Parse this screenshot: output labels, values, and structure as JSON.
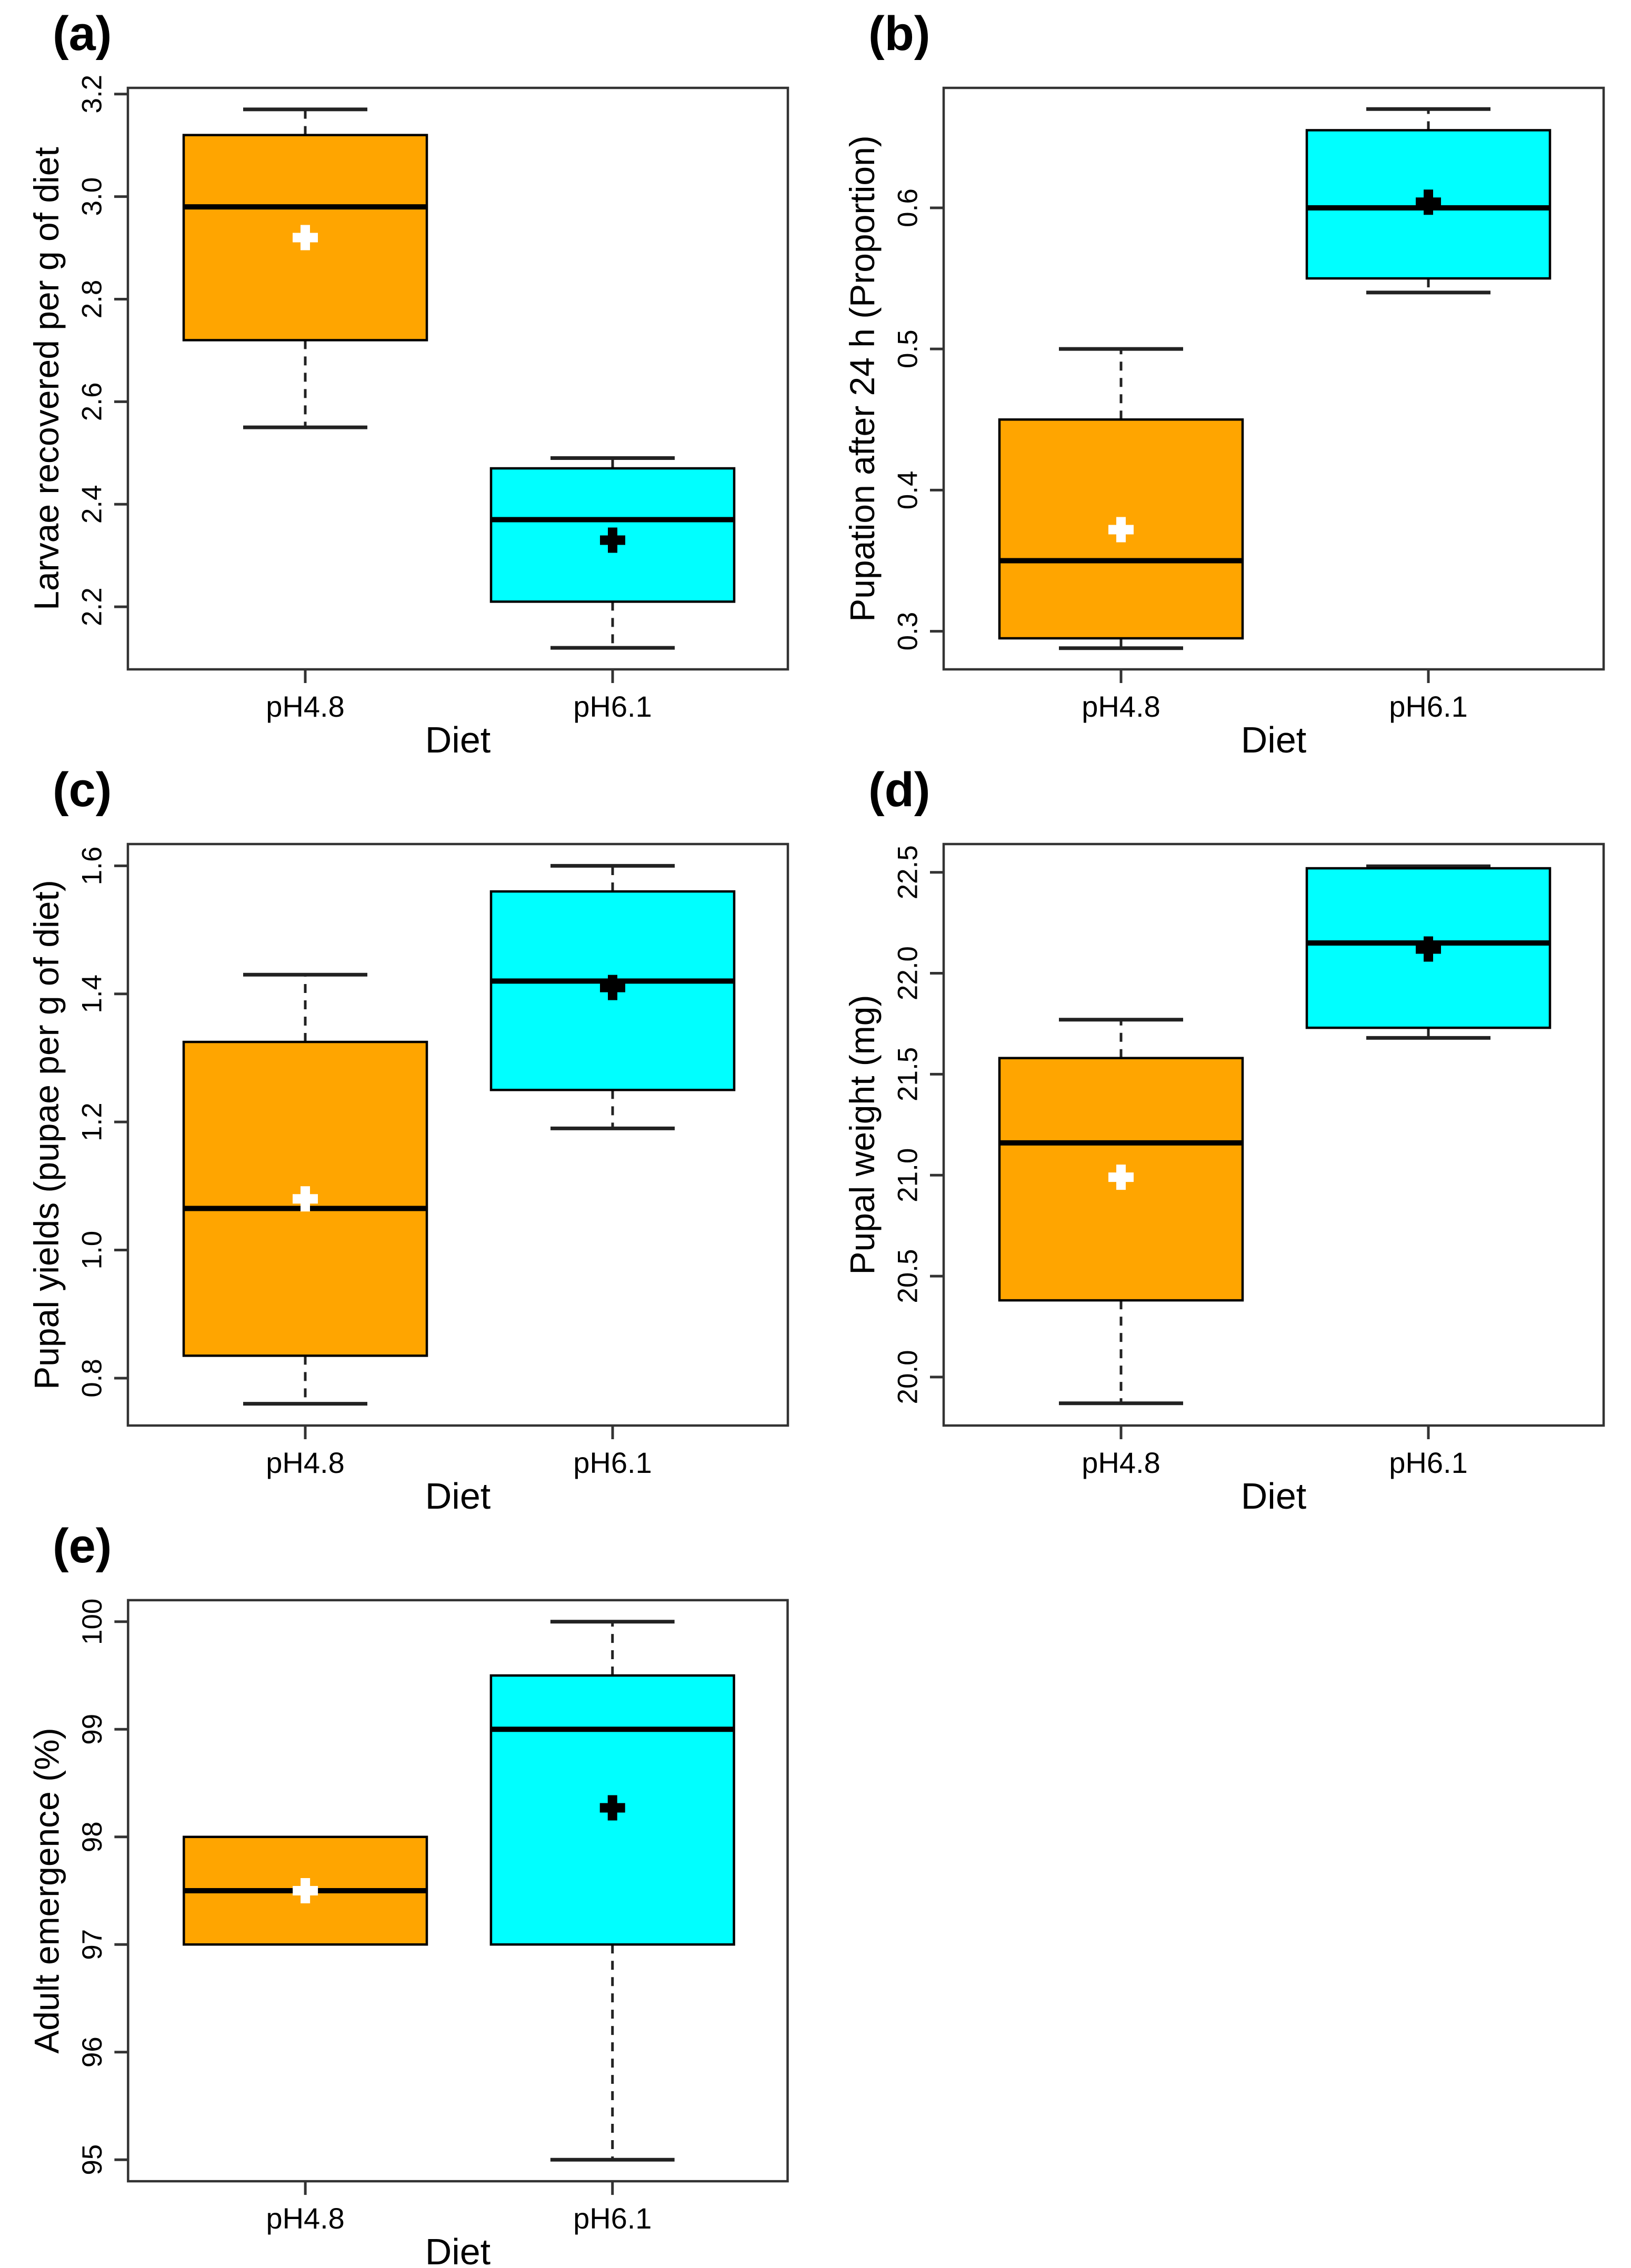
{
  "figure": {
    "background": "#ffffff",
    "text_color": "#000000",
    "frame_color": "#333333",
    "whisker_color": "#222222",
    "x_axis_title": "Diet",
    "categories": [
      "pH4.8",
      "pH6.1"
    ],
    "box_colors": {
      "pH4.8": "#FFA500",
      "pH6.1": "#00FFFF"
    },
    "mean_marker_glyph": "plus-cross"
  },
  "chart_data": [
    {
      "type": "box",
      "panel_label": "(a)",
      "ylabel": "Larvae recovered per g of diet",
      "xlabel": "Diet",
      "categories": [
        "pH4.8",
        "pH6.1"
      ],
      "ylim": [
        2.078,
        3.212
      ],
      "grid": false,
      "tick_values": [
        2.2,
        2.4,
        2.6,
        2.8,
        3.0,
        3.2
      ],
      "tick_labels": [
        "2.2",
        "2.4",
        "2.6",
        "2.8",
        "3.0",
        "3.2"
      ],
      "series": [
        {
          "category": "pH4.8",
          "fill": "#FFA500",
          "whisker_low": 2.55,
          "q1": 2.72,
          "median": 2.98,
          "q3": 3.12,
          "whisker_high": 3.17,
          "mean": 2.92,
          "mean_marker": "#FFFFFF"
        },
        {
          "category": "pH6.1",
          "fill": "#00FFFF",
          "whisker_low": 2.12,
          "q1": 2.21,
          "median": 2.37,
          "q3": 2.47,
          "whisker_high": 2.49,
          "mean": 2.33,
          "mean_marker": "#000000"
        }
      ]
    },
    {
      "type": "box",
      "panel_label": "(b)",
      "ylabel": "Pupation after 24 h (Proportion)",
      "xlabel": "Diet",
      "categories": [
        "pH4.8",
        "pH6.1"
      ],
      "ylim": [
        0.273,
        0.685
      ],
      "grid": false,
      "tick_values": [
        0.3,
        0.4,
        0.5,
        0.6
      ],
      "tick_labels": [
        "0.3",
        "0.4",
        "0.5",
        "0.6"
      ],
      "series": [
        {
          "category": "pH4.8",
          "fill": "#FFA500",
          "whisker_low": 0.288,
          "q1": 0.295,
          "median": 0.35,
          "q3": 0.45,
          "whisker_high": 0.5,
          "mean": 0.372,
          "mean_marker": "#FFFFFF"
        },
        {
          "category": "pH6.1",
          "fill": "#00FFFF",
          "whisker_low": 0.54,
          "q1": 0.55,
          "median": 0.6,
          "q3": 0.655,
          "whisker_high": 0.67,
          "mean": 0.604,
          "mean_marker": "#000000"
        }
      ]
    },
    {
      "type": "box",
      "panel_label": "(c)",
      "ylabel": "Pupal yields (pupae per g of diet)",
      "xlabel": "Diet",
      "categories": [
        "pH4.8",
        "pH6.1"
      ],
      "ylim": [
        0.726,
        1.634
      ],
      "grid": false,
      "tick_values": [
        0.8,
        1.0,
        1.2,
        1.4,
        1.6
      ],
      "tick_labels": [
        "0.8",
        "1.0",
        "1.2",
        "1.4",
        "1.6"
      ],
      "series": [
        {
          "category": "pH4.8",
          "fill": "#FFA500",
          "whisker_low": 0.76,
          "q1": 0.835,
          "median": 1.065,
          "q3": 1.325,
          "whisker_high": 1.43,
          "mean": 1.08,
          "mean_marker": "#FFFFFF"
        },
        {
          "category": "pH6.1",
          "fill": "#00FFFF",
          "whisker_low": 1.19,
          "q1": 1.25,
          "median": 1.42,
          "q3": 1.56,
          "whisker_high": 1.6,
          "mean": 1.41,
          "mean_marker": "#000000"
        }
      ]
    },
    {
      "type": "box",
      "panel_label": "(d)",
      "ylabel": "Pupal weight (mg)",
      "xlabel": "Diet",
      "categories": [
        "pH4.8",
        "pH6.1"
      ],
      "ylim": [
        19.76,
        22.64
      ],
      "grid": false,
      "tick_values": [
        20.0,
        20.5,
        21.0,
        21.5,
        22.0,
        22.5
      ],
      "tick_labels": [
        "20.0",
        "20.5",
        "21.0",
        "21.5",
        "22.0",
        "22.5"
      ],
      "series": [
        {
          "category": "pH4.8",
          "fill": "#FFA500",
          "whisker_low": 19.87,
          "q1": 20.38,
          "median": 21.16,
          "q3": 21.58,
          "whisker_high": 21.77,
          "mean": 20.99,
          "mean_marker": "#FFFFFF"
        },
        {
          "category": "pH6.1",
          "fill": "#00FFFF",
          "whisker_low": 21.68,
          "q1": 21.73,
          "median": 22.15,
          "q3": 22.52,
          "whisker_high": 22.53,
          "mean": 22.12,
          "mean_marker": "#000000"
        }
      ]
    },
    {
      "type": "box",
      "panel_label": "(e)",
      "ylabel": "Adult emergence (%)",
      "xlabel": "Diet",
      "categories": [
        "pH4.8",
        "pH6.1"
      ],
      "ylim": [
        94.8,
        100.2
      ],
      "grid": false,
      "tick_values": [
        95,
        96,
        97,
        98,
        99,
        100
      ],
      "tick_labels": [
        "95",
        "96",
        "97",
        "98",
        "99",
        "100"
      ],
      "series": [
        {
          "category": "pH4.8",
          "fill": "#FFA500",
          "whisker_low": 97.0,
          "q1": 97.0,
          "median": 97.5,
          "q3": 98.0,
          "whisker_high": 98.0,
          "mean": 97.5,
          "mean_marker": "#FFFFFF"
        },
        {
          "category": "pH6.1",
          "fill": "#00FFFF",
          "whisker_low": 95.0,
          "q1": 97.0,
          "median": 99.0,
          "q3": 99.5,
          "whisker_high": 100.0,
          "mean": 98.27,
          "mean_marker": "#000000"
        }
      ]
    }
  ]
}
